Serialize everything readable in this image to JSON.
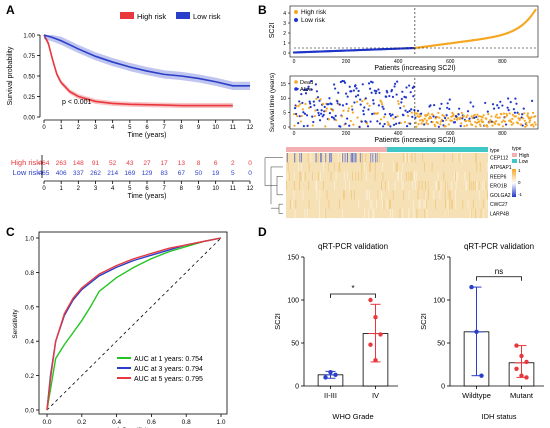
{
  "colors": {
    "high": "#e8383d",
    "low": "#2a3fc9",
    "orange": "#f5a623",
    "blue": "#1f35c9",
    "teal": "#3fc6c6",
    "pink": "#f2b0b0"
  },
  "panel_labels": {
    "a": "A",
    "b": "B",
    "c": "C",
    "d": "D"
  },
  "chart_data": [
    {
      "type": "line",
      "panel": "A",
      "legend": [
        "High risk",
        "Low risk"
      ],
      "ylabel": "Survival probability",
      "xlabel": "Time (years)",
      "ylim": [
        0,
        1
      ],
      "xlim": [
        0,
        12
      ],
      "yticks": [
        "0.00",
        "0.25",
        "0.50",
        "0.75",
        "1.00"
      ],
      "xticks": [
        "0",
        "1",
        "2",
        "3",
        "4",
        "5",
        "6",
        "7",
        "8",
        "9",
        "10",
        "11",
        "12"
      ],
      "pvalue_text": "p < 0.001",
      "series": [
        {
          "name": "High risk",
          "points": [
            [
              0,
              1.0
            ],
            [
              0.25,
              0.9
            ],
            [
              0.5,
              0.7
            ],
            [
              0.75,
              0.52
            ],
            [
              1,
              0.42
            ],
            [
              1.5,
              0.31
            ],
            [
              2,
              0.25
            ],
            [
              3,
              0.19
            ],
            [
              4,
              0.165
            ],
            [
              5,
              0.155
            ],
            [
              6,
              0.15
            ],
            [
              7,
              0.145
            ],
            [
              8,
              0.14
            ],
            [
              9,
              0.14
            ],
            [
              10,
              0.14
            ],
            [
              11,
              0.14
            ]
          ]
        },
        {
          "name": "Low risk",
          "points": [
            [
              0,
              1.0
            ],
            [
              0.5,
              0.97
            ],
            [
              1,
              0.93
            ],
            [
              1.5,
              0.88
            ],
            [
              2,
              0.83
            ],
            [
              3,
              0.74
            ],
            [
              4,
              0.67
            ],
            [
              5,
              0.61
            ],
            [
              6,
              0.56
            ],
            [
              7,
              0.52
            ],
            [
              8,
              0.5
            ],
            [
              9,
              0.47
            ],
            [
              10,
              0.43
            ],
            [
              11,
              0.38
            ],
            [
              12,
              0.38
            ]
          ]
        }
      ],
      "risk_table": {
        "xlabel": "Time (years)",
        "rows": [
          {
            "name": "High risk",
            "values": [
              "464",
              "263",
              "148",
              "91",
              "52",
              "43",
              "27",
              "17",
              "13",
              "8",
              "6",
              "2",
              "0"
            ]
          },
          {
            "name": "Low risk",
            "values": [
              "465",
              "406",
              "337",
              "262",
              "214",
              "169",
              "129",
              "83",
              "67",
              "50",
              "19",
              "5",
              "0"
            ]
          }
        ]
      }
    },
    {
      "type": "scatter",
      "panel": "B-top",
      "legend": [
        "High risk",
        "Low risk"
      ],
      "ylabel": "SC2I",
      "xlabel": "Patients (increasing SC2I)",
      "xticks": [
        "0",
        "200",
        "400",
        "600",
        "800"
      ],
      "yticks": [
        "0",
        "1",
        "2",
        "3",
        "4"
      ],
      "ylim": [
        0,
        4.5
      ],
      "xlim": [
        0,
        929
      ],
      "cutoff": 464
    },
    {
      "type": "scatter",
      "panel": "B-mid",
      "ylabel": "Survival time (years)",
      "xlabel": "Patients (increasing SC2I)",
      "xticks": [
        "0",
        "200",
        "400",
        "600",
        "800"
      ],
      "yticks": [
        "0",
        "5",
        "10",
        "15"
      ],
      "legend": [
        "Dead",
        "Alive"
      ]
    },
    {
      "type": "heatmap",
      "panel": "B-bottom",
      "genes": [
        "CEP112",
        "ATP6AP1",
        "REEP6",
        "ERO1B",
        "GOLGA2",
        "CWC27",
        "LARP4B"
      ],
      "legend_title": "type",
      "legend_items": [
        "High",
        "Low"
      ],
      "scale_ticks": [
        "1",
        "0",
        "-1"
      ],
      "annotation_label": "type"
    },
    {
      "type": "line",
      "panel": "C",
      "xlabel": "1-Specificity",
      "ylabel": "Sensitivity",
      "xticks": [
        "0.0",
        "0.2",
        "0.4",
        "0.6",
        "0.8",
        "1.0"
      ],
      "yticks": [
        "0.0",
        "0.2",
        "0.4",
        "0.6",
        "0.8",
        "1.0"
      ],
      "series": [
        {
          "name": "AUC at 1 years: 0.754",
          "color": "#22c522",
          "points": [
            [
              0,
              0
            ],
            [
              0.02,
              0.12
            ],
            [
              0.05,
              0.3
            ],
            [
              0.1,
              0.38
            ],
            [
              0.15,
              0.45
            ],
            [
              0.2,
              0.52
            ],
            [
              0.25,
              0.6
            ],
            [
              0.3,
              0.69
            ],
            [
              0.4,
              0.77
            ],
            [
              0.5,
              0.83
            ],
            [
              0.6,
              0.88
            ],
            [
              0.7,
              0.92
            ],
            [
              0.8,
              0.95
            ],
            [
              0.9,
              0.98
            ],
            [
              1,
              1
            ]
          ]
        },
        {
          "name": "AUC at 3 years: 0.794",
          "color": "#2a3fc9",
          "points": [
            [
              0,
              0
            ],
            [
              0.02,
              0.2
            ],
            [
              0.05,
              0.4
            ],
            [
              0.1,
              0.55
            ],
            [
              0.15,
              0.64
            ],
            [
              0.2,
              0.7
            ],
            [
              0.3,
              0.78
            ],
            [
              0.4,
              0.83
            ],
            [
              0.5,
              0.87
            ],
            [
              0.6,
              0.9
            ],
            [
              0.7,
              0.93
            ],
            [
              0.8,
              0.96
            ],
            [
              0.9,
              0.98
            ],
            [
              1,
              1
            ]
          ]
        },
        {
          "name": "AUC at 5 years: 0.795",
          "color": "#e8383d",
          "points": [
            [
              0,
              0
            ],
            [
              0.02,
              0.18
            ],
            [
              0.05,
              0.4
            ],
            [
              0.1,
              0.56
            ],
            [
              0.15,
              0.65
            ],
            [
              0.2,
              0.71
            ],
            [
              0.3,
              0.79
            ],
            [
              0.4,
              0.84
            ],
            [
              0.5,
              0.88
            ],
            [
              0.6,
              0.91
            ],
            [
              0.7,
              0.94
            ],
            [
              0.8,
              0.96
            ],
            [
              0.9,
              0.98
            ],
            [
              1,
              1
            ]
          ]
        }
      ]
    },
    {
      "type": "bar",
      "panel": "D-left",
      "title": "qRT-PCR validation",
      "xlabel": "WHO Grade",
      "ylabel": "SC2I",
      "categories": [
        "II-III",
        "IV"
      ],
      "values": [
        13,
        61
      ],
      "error": [
        [
          9,
          17
        ],
        [
          28,
          95
        ]
      ],
      "points": [
        [
          10,
          16,
          13
        ],
        [
          100,
          80,
          60,
          48,
          30
        ]
      ],
      "yticks": [
        "0",
        "50",
        "100",
        "150"
      ],
      "ylim": [
        0,
        150
      ],
      "significance": "*"
    },
    {
      "type": "bar",
      "panel": "D-right",
      "title": "qRT-PCR validation",
      "xlabel": "IDH status",
      "ylabel": "SC2I",
      "categories": [
        "Wildtype",
        "Mutant"
      ],
      "values": [
        63,
        27
      ],
      "error": [
        [
          12,
          115
        ],
        [
          10,
          47
        ]
      ],
      "points": [
        [
          115,
          63,
          12
        ],
        [
          47,
          35,
          28,
          20,
          12,
          10
        ]
      ],
      "yticks": [
        "0",
        "50",
        "100",
        "150"
      ],
      "ylim": [
        0,
        150
      ],
      "significance": "ns"
    }
  ]
}
